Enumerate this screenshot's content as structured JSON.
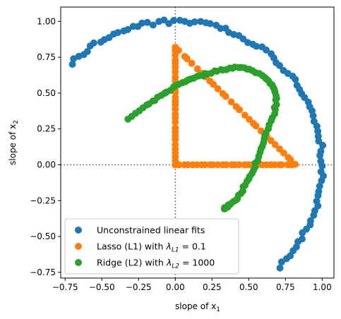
{
  "chart_data": {
    "type": "scatter",
    "title": "",
    "xlabel": "slope of x",
    "xlabel_sub": "1",
    "ylabel": "slope of x",
    "ylabel_sub": "2",
    "xlim": [
      -0.78,
      1.08
    ],
    "ylim": [
      -0.79,
      1.1
    ],
    "xticks": [
      -0.75,
      -0.5,
      -0.25,
      0.0,
      0.25,
      0.5,
      0.75,
      1.0
    ],
    "xtick_labels": [
      "−0.75",
      "−0.50",
      "−0.25",
      "0.00",
      "0.25",
      "0.50",
      "0.75",
      "1.00"
    ],
    "yticks": [
      -0.75,
      -0.5,
      -0.25,
      0.0,
      0.25,
      0.5,
      0.75,
      1.0
    ],
    "ytick_labels": [
      "−0.75",
      "−0.50",
      "−0.25",
      "0.00",
      "0.25",
      "0.50",
      "0.75",
      "1.00"
    ],
    "reference_lines": {
      "x": 0,
      "y": 0,
      "style": "dotted",
      "color": "#555555"
    },
    "legend": {
      "position": "lower-left",
      "entries": [
        {
          "series": 0,
          "text": "Unconstrained linear fits"
        },
        {
          "series": 1,
          "text": "Lasso (L1) with ",
          "math_var": "λ",
          "math_sub": "L1",
          "math_rest": " = 0.1"
        },
        {
          "series": 2,
          "text": "Ridge (L2) with ",
          "math_var": "λ",
          "math_sub": "L2",
          "math_rest": " = 1000"
        }
      ]
    },
    "series": [
      {
        "name": "Unconstrained linear fits",
        "color": "#1f77b4",
        "shape": "arc",
        "radius": 1.0,
        "angle_start_deg": -45,
        "angle_end_deg": 135,
        "n_points": 90
      },
      {
        "name": "Lasso (L1) with λ_L1 = 0.1",
        "color": "#ff7f0e",
        "shape": "triangle",
        "vertices": [
          [
            0.0,
            0.0
          ],
          [
            0.82,
            0.0
          ],
          [
            0.0,
            0.82
          ]
        ],
        "n_points_per_side": 28
      },
      {
        "name": "Ridge (L2) with λ_L2 = 1000",
        "color": "#2ca02c",
        "shape": "curve",
        "points": [
          [
            -0.32,
            0.32
          ],
          [
            -0.2,
            0.41
          ],
          [
            -0.1,
            0.48
          ],
          [
            0.0,
            0.55
          ],
          [
            0.1,
            0.6
          ],
          [
            0.2,
            0.63
          ],
          [
            0.3,
            0.66
          ],
          [
            0.4,
            0.68
          ],
          [
            0.5,
            0.67
          ],
          [
            0.6,
            0.62
          ],
          [
            0.66,
            0.55
          ],
          [
            0.69,
            0.46
          ],
          [
            0.67,
            0.35
          ],
          [
            0.62,
            0.22
          ],
          [
            0.58,
            0.1
          ],
          [
            0.54,
            -0.02
          ],
          [
            0.49,
            -0.12
          ],
          [
            0.43,
            -0.22
          ],
          [
            0.37,
            -0.28
          ],
          [
            0.33,
            -0.31
          ]
        ],
        "n_points": 95
      }
    ]
  }
}
